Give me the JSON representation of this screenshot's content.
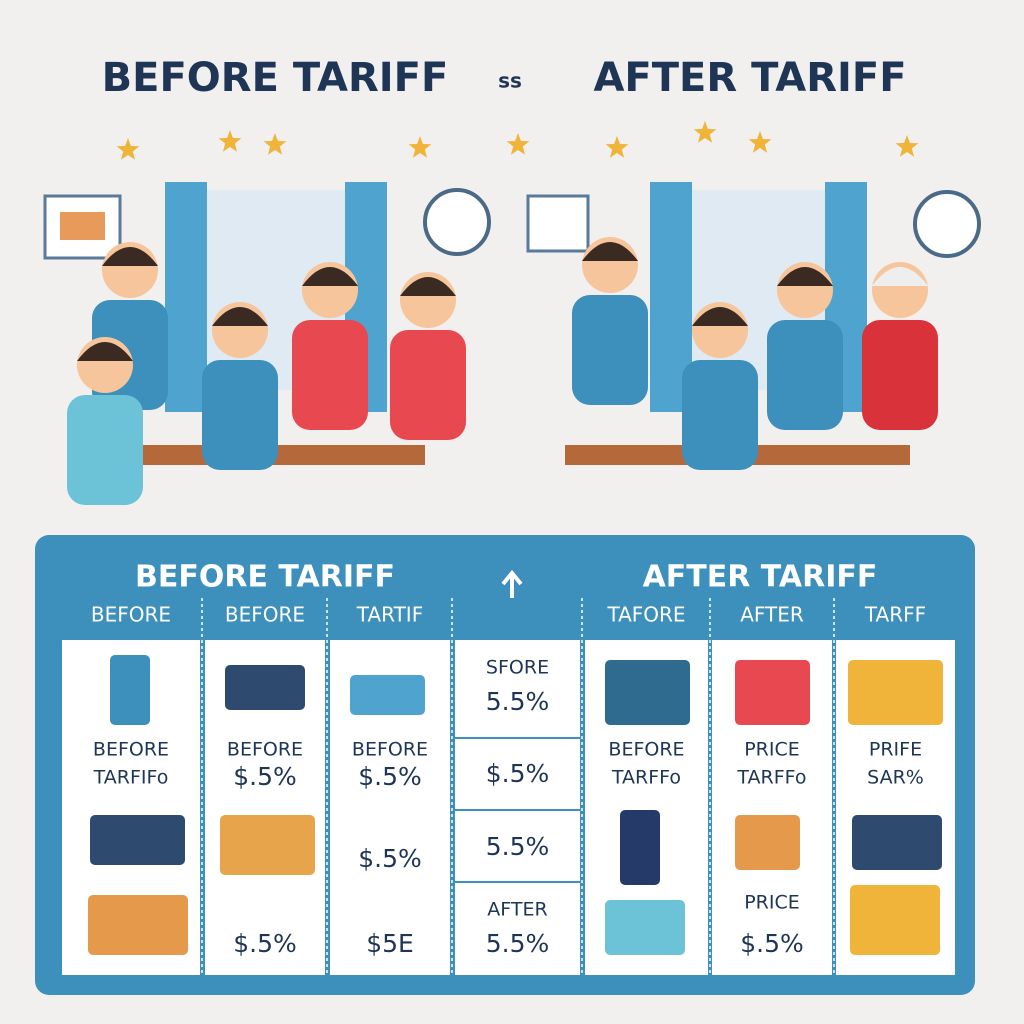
{
  "title": {
    "left": "BEFORE TARIFF",
    "middle": "ss",
    "right": "AFTER TARIFF"
  },
  "panel": {
    "left_heading": "BEFORE TARIFF",
    "right_heading": "AFTER TARIFF",
    "columns": [
      {
        "header": "BEFORE",
        "labels": [
          "BEFORE",
          "TARFIFo"
        ]
      },
      {
        "header": "BEFORE",
        "labels": [
          "BEFORE",
          "$.5%",
          "$.5%"
        ]
      },
      {
        "header": "TARTIF",
        "labels": [
          "BEFORE",
          "$.5%",
          "$.5%",
          "$5E"
        ]
      },
      {
        "labels": [
          "SFORE",
          "5.5%",
          "$.5%",
          "5.5%",
          "AFTER",
          "5.5%"
        ]
      },
      {
        "header": "TAFORE",
        "labels": [
          "BEFORE",
          "TARFFo"
        ]
      },
      {
        "header": "AFTER",
        "labels": [
          "PRICE",
          "TARFFo",
          "PRICE",
          "$.5%"
        ]
      },
      {
        "header": "TARFF",
        "labels": [
          "PRIFE",
          "SAR%"
        ]
      }
    ]
  }
}
